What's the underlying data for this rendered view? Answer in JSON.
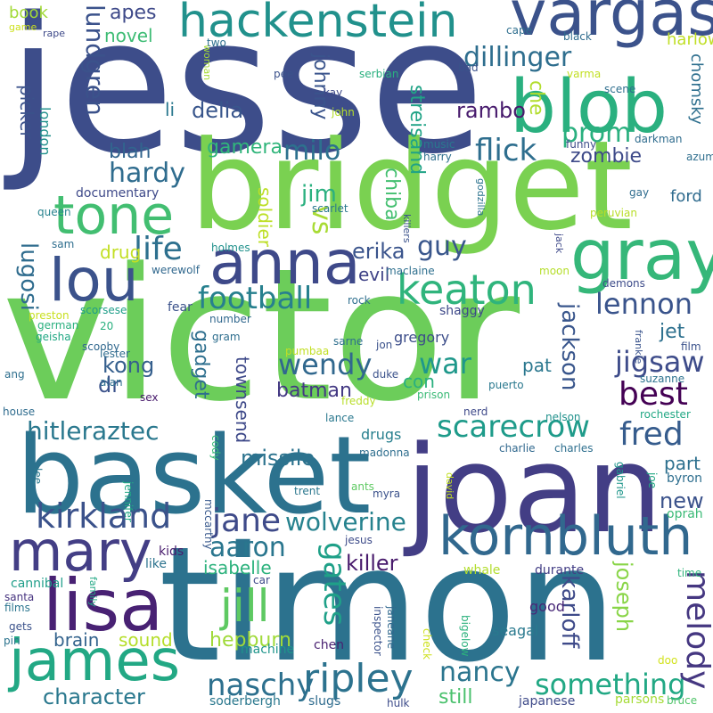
{
  "words": [
    {
      "text": "jesse",
      "color": "#3d4d8a"
    },
    {
      "text": "victor",
      "color": "#6ccd5a"
    },
    {
      "text": "timon",
      "color": "#2c728e"
    },
    {
      "text": "joan",
      "color": "#433e85"
    },
    {
      "text": "basket",
      "color": "#2c728e"
    },
    {
      "text": "bridget",
      "color": "#7ad151"
    },
    {
      "text": "vargas",
      "color": "#3b528b"
    },
    {
      "text": "hackenstein",
      "color": "#21918c"
    },
    {
      "text": "blob",
      "color": "#2ab07f"
    },
    {
      "text": "kornbluth",
      "color": "#31688e"
    },
    {
      "text": "anna",
      "color": "#3e4989"
    },
    {
      "text": "gray",
      "color": "#35b779"
    },
    {
      "text": "tone",
      "color": "#42be71"
    },
    {
      "text": "lou",
      "color": "#3b528b"
    },
    {
      "text": "keaton",
      "color": "#2fb47c"
    },
    {
      "text": "lisa",
      "color": "#482173"
    },
    {
      "text": "mary",
      "color": "#433e85"
    },
    {
      "text": "james",
      "color": "#22a884"
    },
    {
      "text": "ripley",
      "color": "#2c728e"
    },
    {
      "text": "something",
      "color": "#22a884"
    },
    {
      "text": "naschy",
      "color": "#2d708e"
    },
    {
      "text": "melody",
      "color": "#453781"
    },
    {
      "text": "jill",
      "color": "#5ec962"
    },
    {
      "text": "gates",
      "color": "#1fa088"
    },
    {
      "text": "kirkland",
      "color": "#3b528b"
    },
    {
      "text": "jane",
      "color": "#3e4a89"
    },
    {
      "text": "aaron",
      "color": "#2a768e"
    },
    {
      "text": "wolverine",
      "color": "#26828e"
    },
    {
      "text": "hitleraztec",
      "color": "#2a788e"
    },
    {
      "text": "missile",
      "color": "#2c738e"
    },
    {
      "text": "scarecrow",
      "color": "#1e9b8a"
    },
    {
      "text": "fred",
      "color": "#365c8d"
    },
    {
      "text": "part",
      "color": "#2d708e"
    },
    {
      "text": "new",
      "color": "#3b528b"
    },
    {
      "text": "best",
      "color": "#440154"
    },
    {
      "text": "jigsaw",
      "color": "#3e4c8a"
    },
    {
      "text": "war",
      "color": "#1f988b"
    },
    {
      "text": "wendy",
      "color": "#31688e"
    },
    {
      "text": "batman",
      "color": "#443983"
    },
    {
      "text": "football",
      "color": "#27808e"
    },
    {
      "text": "lennon",
      "color": "#3a548c"
    },
    {
      "text": "jackson",
      "color": "#39568c"
    },
    {
      "text": "karloff",
      "color": "#3e4a89"
    },
    {
      "text": "joseph",
      "color": "#89d548"
    },
    {
      "text": "nancy",
      "color": "#2b758e"
    },
    {
      "text": "still",
      "color": "#4ac16d"
    },
    {
      "text": "character",
      "color": "#2a788e"
    },
    {
      "text": "sound",
      "color": "#b5de2b"
    },
    {
      "text": "brain",
      "color": "#33638d"
    },
    {
      "text": "hepburn",
      "color": "#a0da39"
    },
    {
      "text": "isabelle",
      "color": "#2db27d"
    },
    {
      "text": "killer",
      "color": "#481a6c"
    },
    {
      "text": "townsend",
      "color": "#3e4989"
    },
    {
      "text": "gadget",
      "color": "#2e6f8e"
    },
    {
      "text": "kong",
      "color": "#355f8d"
    },
    {
      "text": "dr",
      "color": "#3b528b"
    },
    {
      "text": "life",
      "color": "#2d708e"
    },
    {
      "text": "guy",
      "color": "#39568c"
    },
    {
      "text": "hardy",
      "color": "#2f6c8e"
    },
    {
      "text": "lugosi",
      "color": "#2f6c8e"
    },
    {
      "text": "drug",
      "color": "#c2df23"
    },
    {
      "text": "vs",
      "color": "#a8db34"
    },
    {
      "text": "milo",
      "color": "#2d718e"
    },
    {
      "text": "jim",
      "color": "#2ab07f"
    },
    {
      "text": "soldier",
      "color": "#bddf26"
    },
    {
      "text": "erika",
      "color": "#3a548c"
    },
    {
      "text": "evil",
      "color": "#404387"
    },
    {
      "text": "chiba",
      "color": "#44bf70"
    },
    {
      "text": "streisand",
      "color": "#20a386"
    },
    {
      "text": "flick",
      "color": "#2e6e8e"
    },
    {
      "text": "zombie",
      "color": "#3e4a89"
    },
    {
      "text": "prom",
      "color": "#2ab07f"
    },
    {
      "text": "che",
      "color": "#b2dd2d"
    },
    {
      "text": "rambo",
      "color": "#481b6d"
    },
    {
      "text": "johnny",
      "color": "#3a548c"
    },
    {
      "text": "delia",
      "color": "#39568c"
    },
    {
      "text": "li",
      "color": "#2a788e"
    },
    {
      "text": "gamera",
      "color": "#31b57b"
    },
    {
      "text": "blah",
      "color": "#32648e"
    },
    {
      "text": "lundgren",
      "color": "#3b528b"
    },
    {
      "text": "apes",
      "color": "#3e4989"
    },
    {
      "text": "novel",
      "color": "#3dbc74"
    },
    {
      "text": "dillinger",
      "color": "#2e6e8e"
    },
    {
      "text": "picker",
      "color": "#3b528b"
    },
    {
      "text": "london",
      "color": "#21918c"
    },
    {
      "text": "book",
      "color": "#a2da37"
    },
    {
      "text": "harlow",
      "color": "#c0df25"
    },
    {
      "text": "chomsky",
      "color": "#2e6f8e"
    },
    {
      "text": "ford",
      "color": "#2f6b8e"
    },
    {
      "text": "gregory",
      "color": "#3d4e8a"
    },
    {
      "text": "con",
      "color": "#2ab07f"
    },
    {
      "text": "pat",
      "color": "#2a778e"
    },
    {
      "text": "jet",
      "color": "#2d708e"
    },
    {
      "text": "drugs",
      "color": "#277f8e"
    },
    {
      "text": "lee",
      "color": "#2a788e"
    },
    {
      "text": "jennifer",
      "color": "#22a884"
    },
    {
      "text": "mccarthy",
      "color": "#38588c"
    },
    {
      "text": "cody",
      "color": "#3aba76"
    },
    {
      "text": "kids",
      "color": "#481b6d"
    },
    {
      "text": "like",
      "color": "#2c738e"
    },
    {
      "text": "jesus",
      "color": "#3e4c8a"
    },
    {
      "text": "whale",
      "color": "#b2dd2d"
    },
    {
      "text": "durante",
      "color": "#433e85"
    },
    {
      "text": "time",
      "color": "#2fb47c"
    },
    {
      "text": "good",
      "color": "#482878"
    },
    {
      "text": "seagal",
      "color": "#29798e"
    },
    {
      "text": "bigelow",
      "color": "#2db27d"
    },
    {
      "text": "check",
      "color": "#cde11d"
    },
    {
      "text": "janeane",
      "color": "#31688e"
    },
    {
      "text": "inspector",
      "color": "#3b528b"
    },
    {
      "text": "chen",
      "color": "#481f70"
    },
    {
      "text": "machine",
      "color": "#1f958b"
    },
    {
      "text": "soderbergh",
      "color": "#2a788e"
    },
    {
      "text": "slugs",
      "color": "#2f6c8e"
    },
    {
      "text": "hulk",
      "color": "#3e4c8a"
    },
    {
      "text": "japanese",
      "color": "#3e4a89"
    },
    {
      "text": "parsons",
      "color": "#a5db36"
    },
    {
      "text": "bruce",
      "color": "#50c46a"
    },
    {
      "text": "doo",
      "color": "#d2e21b"
    },
    {
      "text": "cannibal",
      "color": "#1f9e89"
    },
    {
      "text": "santa",
      "color": "#46337f"
    },
    {
      "text": "films",
      "color": "#2b758e"
    },
    {
      "text": "family",
      "color": "#22a884"
    },
    {
      "text": "gets",
      "color": "#3b528b"
    },
    {
      "text": "pin",
      "color": "#2c738e"
    },
    {
      "text": "car",
      "color": "#3e4989"
    },
    {
      "text": "oprah",
      "color": "#3aba76"
    },
    {
      "text": "byron",
      "color": "#2e6e8e"
    },
    {
      "text": "gabriel",
      "color": "#1f968b"
    },
    {
      "text": "joe",
      "color": "#22a884"
    },
    {
      "text": "charlie",
      "color": "#31688e"
    },
    {
      "text": "charles",
      "color": "#2e6f8e"
    },
    {
      "text": "trent",
      "color": "#2a778e"
    },
    {
      "text": "ants",
      "color": "#5ec962"
    },
    {
      "text": "myra",
      "color": "#3b528b"
    },
    {
      "text": "david",
      "color": "#c2df23"
    },
    {
      "text": "madonna",
      "color": "#2e6e8e"
    },
    {
      "text": "nelson",
      "color": "#21918c"
    },
    {
      "text": "rochester",
      "color": "#22a884"
    },
    {
      "text": "nerd",
      "color": "#3e4989"
    },
    {
      "text": "lance",
      "color": "#2a788e"
    },
    {
      "text": "freddy",
      "color": "#b8de29"
    },
    {
      "text": "prison",
      "color": "#3aba76"
    },
    {
      "text": "suzanne",
      "color": "#2c728e"
    },
    {
      "text": "puerto",
      "color": "#2a788e"
    },
    {
      "text": "duke",
      "color": "#3b528b"
    },
    {
      "text": "jon",
      "color": "#3b528b"
    },
    {
      "text": "sarne",
      "color": "#2e6f8e"
    },
    {
      "text": "pumbaa",
      "color": "#c2df23"
    },
    {
      "text": "frankie",
      "color": "#3a548c"
    },
    {
      "text": "film",
      "color": "#3b528b"
    },
    {
      "text": "sex",
      "color": "#481a6c"
    },
    {
      "text": "alan",
      "color": "#2e6e8e"
    },
    {
      "text": "lester",
      "color": "#2f6c8e"
    },
    {
      "text": "scooby",
      "color": "#31688e"
    },
    {
      "text": "20",
      "color": "#2ab07f"
    },
    {
      "text": "ang",
      "color": "#2e6f8e"
    },
    {
      "text": "house",
      "color": "#2f6c8e"
    },
    {
      "text": "gram",
      "color": "#2e6e8e"
    },
    {
      "text": "number",
      "color": "#31688e"
    },
    {
      "text": "fear",
      "color": "#3b528b"
    },
    {
      "text": "shaggy",
      "color": "#3e4989"
    },
    {
      "text": "rock",
      "color": "#2e6f8e"
    },
    {
      "text": "demons",
      "color": "#3e4c8a"
    },
    {
      "text": "moon",
      "color": "#b5de2b"
    },
    {
      "text": "jack",
      "color": "#3e4989"
    },
    {
      "text": "maclaine",
      "color": "#2e6f8e"
    },
    {
      "text": "preston",
      "color": "#c8e020"
    },
    {
      "text": "scorsese",
      "color": "#1f9e89"
    },
    {
      "text": "german",
      "color": "#2ab07f"
    },
    {
      "text": "geisha",
      "color": "#22a884"
    },
    {
      "text": "werewolf",
      "color": "#31688e"
    },
    {
      "text": "holmes",
      "color": "#21918c"
    },
    {
      "text": "sam",
      "color": "#2e6e8e"
    },
    {
      "text": "queen",
      "color": "#26828e"
    },
    {
      "text": "scarlet",
      "color": "#2a788e"
    },
    {
      "text": "killers",
      "color": "#3b528b"
    },
    {
      "text": "godzilla",
      "color": "#2c738e"
    },
    {
      "text": "peruvian",
      "color": "#b8de29"
    },
    {
      "text": "gay",
      "color": "#2f6c8e"
    },
    {
      "text": "documentary",
      "color": "#3e4989"
    },
    {
      "text": "harry",
      "color": "#2e6f8e"
    },
    {
      "text": "music",
      "color": "#2a788e"
    },
    {
      "text": "funny",
      "color": "#3e4c8a"
    },
    {
      "text": "darkman",
      "color": "#2f6c8e"
    },
    {
      "text": "azumi",
      "color": "#2e6e8e"
    },
    {
      "text": "scene",
      "color": "#2e6f8e"
    },
    {
      "text": "varma",
      "color": "#c2df23"
    },
    {
      "text": "bad",
      "color": "#3b528b"
    },
    {
      "text": "serbian",
      "color": "#2ab07f"
    },
    {
      "text": "kay",
      "color": "#3e4989"
    },
    {
      "text": "john",
      "color": "#b5de2b"
    },
    {
      "text": "pee",
      "color": "#3b528b"
    },
    {
      "text": "woman",
      "color": "#a5db36"
    },
    {
      "text": "two",
      "color": "#2e6f8e"
    },
    {
      "text": "cape",
      "color": "#2e6e8e"
    },
    {
      "text": "black",
      "color": "#2f6c8e"
    },
    {
      "text": "game",
      "color": "#cde11d"
    },
    {
      "text": "rape",
      "color": "#3e4989"
    },
    {
      "text": "tho",
      "color": "#2ab07f"
    }
  ]
}
